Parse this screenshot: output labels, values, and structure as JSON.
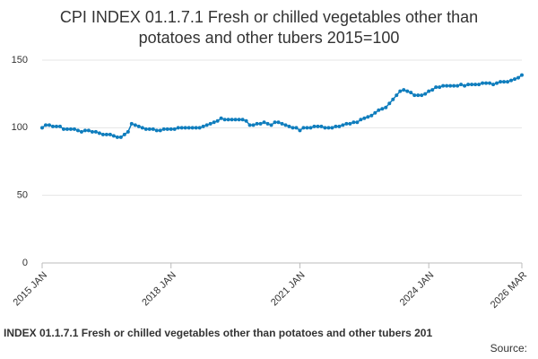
{
  "chart_data": {
    "type": "line",
    "title": [
      "CPI INDEX 01.1.7.1 Fresh or chilled vegetables other than",
      "potatoes and other tubers 2015=100"
    ],
    "footer": "INDEX 01.1.7.1 Fresh or chilled vegetables other than potatoes and other tubers 201",
    "source": "Source:",
    "categories": [
      "2015 JAN",
      null,
      null,
      null,
      null,
      null,
      null,
      null,
      null,
      null,
      null,
      null,
      null,
      null,
      null,
      null,
      null,
      null,
      null,
      null,
      null,
      null,
      null,
      null,
      null,
      null,
      null,
      null,
      null,
      null,
      null,
      null,
      null,
      null,
      null,
      null,
      "2018 JAN",
      null,
      null,
      null,
      null,
      null,
      null,
      null,
      null,
      null,
      null,
      null,
      null,
      null,
      null,
      null,
      null,
      null,
      null,
      null,
      null,
      null,
      null,
      null,
      null,
      null,
      null,
      null,
      null,
      null,
      null,
      null,
      null,
      null,
      null,
      null,
      "2021 JAN",
      null,
      null,
      null,
      null,
      null,
      null,
      null,
      null,
      null,
      null,
      null,
      null,
      null,
      null,
      null,
      null,
      null,
      null,
      null,
      null,
      null,
      null,
      null,
      null,
      null,
      null,
      null,
      null,
      null,
      null,
      null,
      null,
      null,
      null,
      null,
      "2024 JAN",
      null,
      null,
      null,
      null,
      null,
      null,
      null,
      null,
      null,
      null,
      null,
      null,
      null,
      null,
      null,
      null,
      null,
      null,
      null,
      null,
      null,
      null,
      null,
      null,
      null,
      "2026 MAR"
    ],
    "series": [
      {
        "color": "#0f7dbd",
        "values": [
          100,
          102,
          102,
          101,
          101,
          101,
          99,
          99,
          99,
          99,
          98,
          97,
          98,
          98,
          97,
          97,
          96,
          95,
          95,
          95,
          94,
          93,
          93,
          95,
          97,
          103,
          102,
          101,
          100,
          99,
          99,
          99,
          98,
          98,
          99,
          99,
          99,
          99,
          100,
          100,
          100,
          100,
          100,
          100,
          100,
          101,
          102,
          103,
          104,
          105,
          107,
          106,
          106,
          106,
          106,
          106,
          106,
          105,
          102,
          102,
          103,
          103,
          104,
          103,
          102,
          104,
          104,
          103,
          102,
          101,
          100,
          100,
          98,
          100,
          100,
          100,
          101,
          101,
          101,
          100,
          100,
          100,
          101,
          101,
          102,
          103,
          103,
          104,
          104,
          106,
          107,
          108,
          109,
          111,
          113,
          114,
          115,
          118,
          121,
          124,
          127,
          128,
          127,
          126,
          124,
          124,
          124,
          125,
          127,
          128,
          130,
          130,
          131,
          131,
          131,
          131,
          131,
          132,
          131,
          132,
          132,
          132,
          132,
          133,
          133,
          133,
          132,
          133,
          134,
          134,
          134,
          135,
          136,
          137,
          139
        ]
      }
    ],
    "ylim": [
      0,
      150
    ],
    "yticks": [
      0,
      50,
      100,
      150
    ],
    "grid": true
  }
}
